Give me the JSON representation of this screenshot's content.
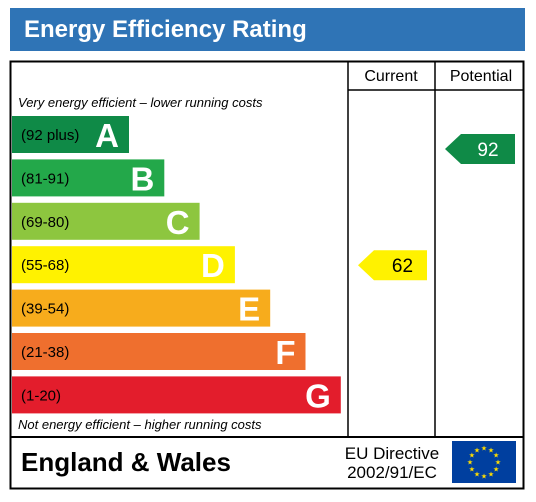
{
  "chart_data": {
    "type": "table",
    "title": "Energy Efficiency Rating",
    "columns": [
      "Current",
      "Potential"
    ],
    "top_note": "Very energy efficient – lower running costs",
    "bottom_note": "Not energy efficient – higher running costs",
    "bands": [
      {
        "letter": "A",
        "range": "(92 plus)",
        "color": "#0f8a47"
      },
      {
        "letter": "B",
        "range": "(81-91)",
        "color": "#23a84a"
      },
      {
        "letter": "C",
        "range": "(69-80)",
        "color": "#8dc63f"
      },
      {
        "letter": "D",
        "range": "(55-68)",
        "color": "#fff200"
      },
      {
        "letter": "E",
        "range": "(39-54)",
        "color": "#f7ac1c"
      },
      {
        "letter": "F",
        "range": "(21-38)",
        "color": "#ef6f2e"
      },
      {
        "letter": "G",
        "range": "(1-20)",
        "color": "#e31d2c"
      }
    ],
    "current": {
      "value": 62,
      "band": "D",
      "color": "#fff200"
    },
    "potential": {
      "value": 92,
      "band": "A",
      "color": "#0f8a47"
    },
    "region": "England & Wales",
    "directive": [
      "EU Directive",
      "2002/91/EC"
    ]
  },
  "icons": {
    "eu_flag": "eu-flag-icon",
    "eu_flag_color": "#003f9f",
    "eu_star_color": "#ffdd00"
  }
}
